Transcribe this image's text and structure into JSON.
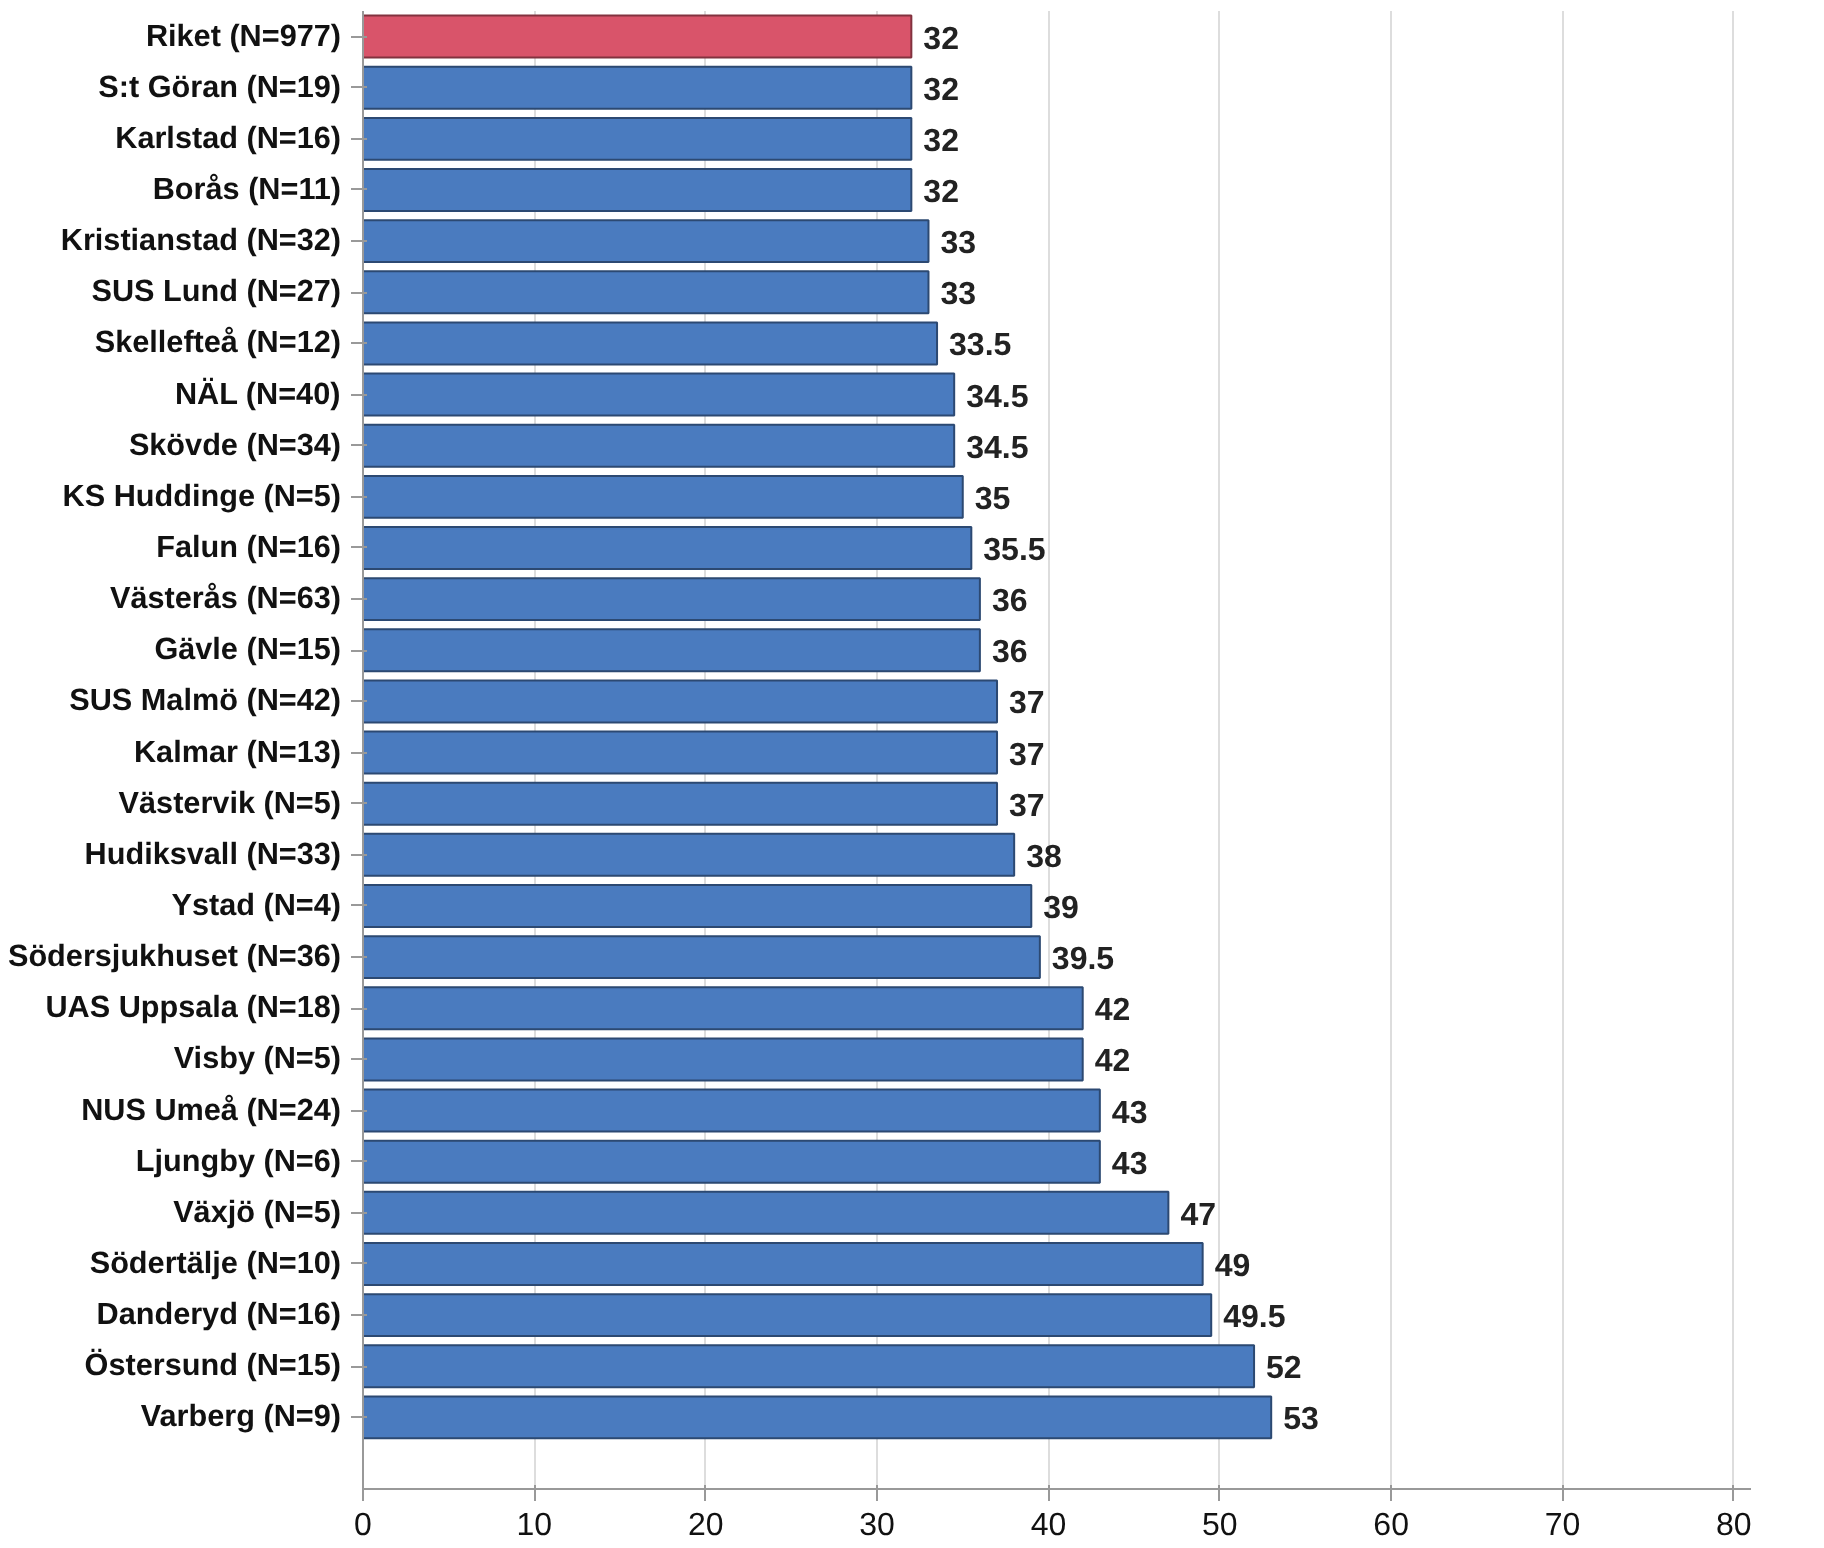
{
  "chart_data": {
    "type": "bar",
    "orientation": "horizontal",
    "categories": [
      "Riket (N=977)",
      "S:t Göran (N=19)",
      "Karlstad (N=16)",
      "Borås (N=11)",
      "Kristianstad (N=32)",
      "SUS Lund (N=27)",
      "Skellefteå (N=12)",
      "NÄL (N=40)",
      "Skövde (N=34)",
      "KS Huddinge (N=5)",
      "Falun (N=16)",
      "Västerås (N=63)",
      "Gävle (N=15)",
      "SUS Malmö (N=42)",
      "Kalmar (N=13)",
      "Västervik (N=5)",
      "Hudiksvall (N=33)",
      "Ystad (N=4)",
      "Södersjukhuset (N=36)",
      "UAS Uppsala (N=18)",
      "Visby (N=5)",
      "NUS Umeå (N=24)",
      "Ljungby (N=6)",
      "Växjö (N=5)",
      "Södertälje (N=10)",
      "Danderyd (N=16)",
      "Östersund (N=15)",
      "Varberg (N=9)"
    ],
    "values": [
      32,
      32,
      32,
      32,
      33,
      33,
      33.5,
      34.5,
      34.5,
      35,
      35.5,
      36,
      36,
      37,
      37,
      37,
      38,
      39,
      39.5,
      42,
      42,
      43,
      43,
      47,
      49,
      49.5,
      52,
      53
    ],
    "colors": [
      "#d9546a",
      "#4a7bbf",
      "#4a7bbf",
      "#4a7bbf",
      "#4a7bbf",
      "#4a7bbf",
      "#4a7bbf",
      "#4a7bbf",
      "#4a7bbf",
      "#4a7bbf",
      "#4a7bbf",
      "#4a7bbf",
      "#4a7bbf",
      "#4a7bbf",
      "#4a7bbf",
      "#4a7bbf",
      "#4a7bbf",
      "#4a7bbf",
      "#4a7bbf",
      "#4a7bbf",
      "#4a7bbf",
      "#4a7bbf",
      "#4a7bbf",
      "#4a7bbf",
      "#4a7bbf",
      "#4a7bbf",
      "#4a7bbf",
      "#4a7bbf"
    ],
    "xlim": [
      0,
      81
    ],
    "xticks": [
      0,
      10,
      20,
      30,
      40,
      50,
      60,
      70,
      80
    ],
    "grid": "x",
    "data_labels": true
  }
}
